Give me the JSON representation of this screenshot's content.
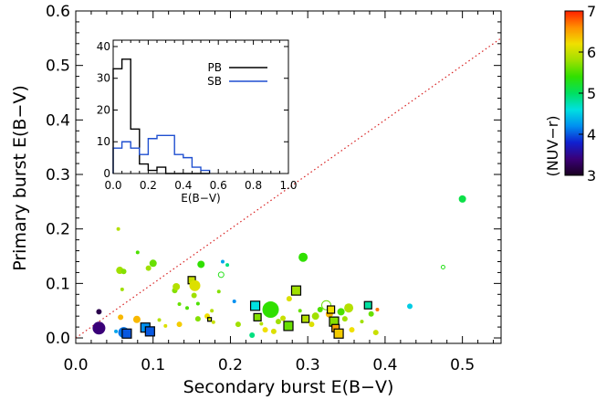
{
  "chart_data": [
    {
      "type": "scatter",
      "title": "",
      "xlabel": "Secondary burst E(B−V)",
      "ylabel": "Primary burst E(B−V)",
      "xlim": [
        0.0,
        0.55
      ],
      "ylim": [
        -0.01,
        0.6
      ],
      "x_ticks": [
        "0.0",
        "0.1",
        "0.2",
        "0.3",
        "0.4",
        "0.5"
      ],
      "y_ticks": [
        "0.0",
        "0.1",
        "0.2",
        "0.3",
        "0.4",
        "0.5",
        "0.6"
      ],
      "reference_line": {
        "style": "dotted",
        "color": "#d82020",
        "from": [
          0.0,
          0.0
        ],
        "to": [
          0.55,
          0.55
        ]
      },
      "colorbar": {
        "label": "(NUV−r)",
        "range": [
          3,
          7
        ],
        "ticks": [
          "3",
          "4",
          "5",
          "6",
          "7"
        ],
        "colormap": [
          "#1a0020",
          "#3a0078",
          "#1020d0",
          "#0090f0",
          "#00e0e0",
          "#00e060",
          "#30e000",
          "#a0e000",
          "#f0e000",
          "#ff9000",
          "#ff2000"
        ]
      },
      "points": [
        {
          "x": 0.03,
          "y": 0.018,
          "c": 3.4,
          "size": 7,
          "shape": "circle"
        },
        {
          "x": 0.03,
          "y": 0.048,
          "c": 3.2,
          "size": 3,
          "shape": "circle"
        },
        {
          "x": 0.062,
          "y": 0.01,
          "c": 4.1,
          "size": 6,
          "shape": "circle"
        },
        {
          "x": 0.066,
          "y": 0.008,
          "c": 4.0,
          "size": 5,
          "shape": "square"
        },
        {
          "x": 0.058,
          "y": 0.038,
          "c": 6.4,
          "size": 3,
          "shape": "circle"
        },
        {
          "x": 0.052,
          "y": 0.012,
          "c": 4.3,
          "size": 2,
          "shape": "circle"
        },
        {
          "x": 0.055,
          "y": 0.2,
          "c": 5.9,
          "size": 2,
          "shape": "circle"
        },
        {
          "x": 0.057,
          "y": 0.124,
          "c": 5.8,
          "size": 4,
          "shape": "circle"
        },
        {
          "x": 0.062,
          "y": 0.122,
          "c": 5.7,
          "size": 3,
          "shape": "circle"
        },
        {
          "x": 0.06,
          "y": 0.089,
          "c": 5.8,
          "size": 2,
          "shape": "circle"
        },
        {
          "x": 0.079,
          "y": 0.034,
          "c": 6.4,
          "size": 4,
          "shape": "circle"
        },
        {
          "x": 0.08,
          "y": 0.157,
          "c": 5.5,
          "size": 2,
          "shape": "circle"
        },
        {
          "x": 0.09,
          "y": 0.019,
          "c": 4.2,
          "size": 5,
          "shape": "square"
        },
        {
          "x": 0.096,
          "y": 0.012,
          "c": 4.0,
          "size": 5,
          "shape": "square"
        },
        {
          "x": 0.094,
          "y": 0.128,
          "c": 5.8,
          "size": 3,
          "shape": "circle"
        },
        {
          "x": 0.1,
          "y": 0.137,
          "c": 5.6,
          "size": 4,
          "shape": "circle"
        },
        {
          "x": 0.108,
          "y": 0.033,
          "c": 5.9,
          "size": 2,
          "shape": "circle"
        },
        {
          "x": 0.116,
          "y": 0.022,
          "c": 6.1,
          "size": 2,
          "shape": "circle"
        },
        {
          "x": 0.128,
          "y": 0.087,
          "c": 5.7,
          "size": 3,
          "shape": "circle"
        },
        {
          "x": 0.13,
          "y": 0.094,
          "c": 5.9,
          "size": 4,
          "shape": "circle"
        },
        {
          "x": 0.134,
          "y": 0.062,
          "c": 5.6,
          "size": 2,
          "shape": "circle"
        },
        {
          "x": 0.134,
          "y": 0.025,
          "c": 6.3,
          "size": 3,
          "shape": "circle"
        },
        {
          "x": 0.144,
          "y": 0.055,
          "c": 5.5,
          "size": 2,
          "shape": "circle"
        },
        {
          "x": 0.15,
          "y": 0.106,
          "c": 6.0,
          "size": 4,
          "shape": "square"
        },
        {
          "x": 0.154,
          "y": 0.096,
          "c": 6.1,
          "size": 6,
          "shape": "circle"
        },
        {
          "x": 0.153,
          "y": 0.078,
          "c": 5.8,
          "size": 3,
          "shape": "circle"
        },
        {
          "x": 0.158,
          "y": 0.063,
          "c": 5.5,
          "size": 2,
          "shape": "circle"
        },
        {
          "x": 0.158,
          "y": 0.035,
          "c": 5.7,
          "size": 3,
          "shape": "circle"
        },
        {
          "x": 0.162,
          "y": 0.135,
          "c": 5.4,
          "size": 4,
          "shape": "circle"
        },
        {
          "x": 0.17,
          "y": 0.04,
          "c": 6.2,
          "size": 3,
          "shape": "circle"
        },
        {
          "x": 0.173,
          "y": 0.034,
          "c": 6.0,
          "size": 2,
          "shape": "square"
        },
        {
          "x": 0.178,
          "y": 0.029,
          "c": 6.0,
          "size": 2,
          "shape": "circle"
        },
        {
          "x": 0.176,
          "y": 0.05,
          "c": 5.9,
          "size": 2,
          "shape": "circle"
        },
        {
          "x": 0.185,
          "y": 0.085,
          "c": 5.7,
          "size": 2,
          "shape": "circle"
        },
        {
          "x": 0.188,
          "y": 0.116,
          "c": 5.3,
          "size": 3,
          "shape": "circle",
          "open": true
        },
        {
          "x": 0.19,
          "y": 0.14,
          "c": 4.3,
          "size": 2,
          "shape": "circle"
        },
        {
          "x": 0.196,
          "y": 0.134,
          "c": 4.9,
          "size": 2,
          "shape": "circle"
        },
        {
          "x": 0.205,
          "y": 0.067,
          "c": 4.2,
          "size": 2,
          "shape": "circle"
        },
        {
          "x": 0.21,
          "y": 0.025,
          "c": 5.8,
          "size": 3,
          "shape": "circle"
        },
        {
          "x": 0.228,
          "y": 0.005,
          "c": 4.9,
          "size": 3,
          "shape": "circle"
        },
        {
          "x": 0.232,
          "y": 0.059,
          "c": 4.6,
          "size": 5,
          "shape": "square"
        },
        {
          "x": 0.235,
          "y": 0.038,
          "c": 5.7,
          "size": 4,
          "shape": "square"
        },
        {
          "x": 0.24,
          "y": 0.026,
          "c": 5.9,
          "size": 2,
          "shape": "circle"
        },
        {
          "x": 0.245,
          "y": 0.015,
          "c": 6.2,
          "size": 3,
          "shape": "circle"
        },
        {
          "x": 0.252,
          "y": 0.052,
          "c": 5.4,
          "size": 9,
          "shape": "circle"
        },
        {
          "x": 0.256,
          "y": 0.012,
          "c": 6.1,
          "size": 3,
          "shape": "circle"
        },
        {
          "x": 0.262,
          "y": 0.03,
          "c": 5.8,
          "size": 3,
          "shape": "circle"
        },
        {
          "x": 0.268,
          "y": 0.036,
          "c": 6.0,
          "size": 3,
          "shape": "circle"
        },
        {
          "x": 0.275,
          "y": 0.022,
          "c": 5.6,
          "size": 5,
          "shape": "square"
        },
        {
          "x": 0.276,
          "y": 0.072,
          "c": 6.1,
          "size": 3,
          "shape": "circle"
        },
        {
          "x": 0.285,
          "y": 0.087,
          "c": 5.8,
          "size": 5,
          "shape": "square"
        },
        {
          "x": 0.294,
          "y": 0.148,
          "c": 5.4,
          "size": 5,
          "shape": "circle"
        },
        {
          "x": 0.29,
          "y": 0.05,
          "c": 5.6,
          "size": 2,
          "shape": "circle"
        },
        {
          "x": 0.297,
          "y": 0.035,
          "c": 5.9,
          "size": 4,
          "shape": "square"
        },
        {
          "x": 0.305,
          "y": 0.025,
          "c": 6.1,
          "size": 3,
          "shape": "circle"
        },
        {
          "x": 0.31,
          "y": 0.04,
          "c": 5.8,
          "size": 4,
          "shape": "circle"
        },
        {
          "x": 0.316,
          "y": 0.052,
          "c": 5.5,
          "size": 3,
          "shape": "circle"
        },
        {
          "x": 0.324,
          "y": 0.06,
          "c": 5.6,
          "size": 5,
          "shape": "circle",
          "open": true
        },
        {
          "x": 0.328,
          "y": 0.044,
          "c": 6.4,
          "size": 4,
          "shape": "circle"
        },
        {
          "x": 0.33,
          "y": 0.052,
          "c": 6.2,
          "size": 4,
          "shape": "square"
        },
        {
          "x": 0.334,
          "y": 0.03,
          "c": 5.7,
          "size": 5,
          "shape": "square"
        },
        {
          "x": 0.336,
          "y": 0.018,
          "c": 6.5,
          "size": 4,
          "shape": "square"
        },
        {
          "x": 0.34,
          "y": 0.008,
          "c": 6.3,
          "size": 5,
          "shape": "square"
        },
        {
          "x": 0.343,
          "y": 0.048,
          "c": 5.5,
          "size": 4,
          "shape": "circle"
        },
        {
          "x": 0.348,
          "y": 0.035,
          "c": 5.8,
          "size": 3,
          "shape": "circle"
        },
        {
          "x": 0.353,
          "y": 0.055,
          "c": 5.9,
          "size": 5,
          "shape": "circle"
        },
        {
          "x": 0.357,
          "y": 0.015,
          "c": 6.2,
          "size": 3,
          "shape": "circle"
        },
        {
          "x": 0.37,
          "y": 0.03,
          "c": 5.8,
          "size": 2,
          "shape": "circle"
        },
        {
          "x": 0.378,
          "y": 0.06,
          "c": 4.8,
          "size": 4,
          "shape": "square"
        },
        {
          "x": 0.382,
          "y": 0.044,
          "c": 5.6,
          "size": 3,
          "shape": "circle"
        },
        {
          "x": 0.388,
          "y": 0.01,
          "c": 6.0,
          "size": 3,
          "shape": "circle"
        },
        {
          "x": 0.39,
          "y": 0.052,
          "c": 6.7,
          "size": 2,
          "shape": "circle"
        },
        {
          "x": 0.432,
          "y": 0.058,
          "c": 4.5,
          "size": 3,
          "shape": "circle"
        },
        {
          "x": 0.475,
          "y": 0.13,
          "c": 5.3,
          "size": 2,
          "shape": "circle",
          "open": true
        },
        {
          "x": 0.5,
          "y": 0.255,
          "c": 5.1,
          "size": 4,
          "shape": "circle"
        }
      ]
    },
    {
      "type": "step-histogram",
      "title": "",
      "xlabel": "E(B−V)",
      "ylabel": "",
      "xlim": [
        0.0,
        1.0
      ],
      "ylim": [
        0,
        42
      ],
      "x_ticks": [
        "0.0",
        "0.2",
        "0.4",
        "0.6",
        "0.8",
        "1.0"
      ],
      "y_ticks": [
        "0",
        "10",
        "20",
        "30",
        "40"
      ],
      "legend_position": "top-right",
      "bin_edges": [
        0.0,
        0.05,
        0.1,
        0.15,
        0.2,
        0.25,
        0.3,
        0.35,
        0.4,
        0.45,
        0.5,
        0.55
      ],
      "series": [
        {
          "name": "PB",
          "color": "#000000",
          "values": [
            33,
            36,
            14,
            3,
            1,
            2,
            0,
            0,
            0,
            0,
            0
          ]
        },
        {
          "name": "SB",
          "color": "#1f4fd0",
          "values": [
            8,
            10,
            8,
            6,
            11,
            12,
            12,
            6,
            5,
            2,
            1
          ]
        }
      ]
    }
  ]
}
